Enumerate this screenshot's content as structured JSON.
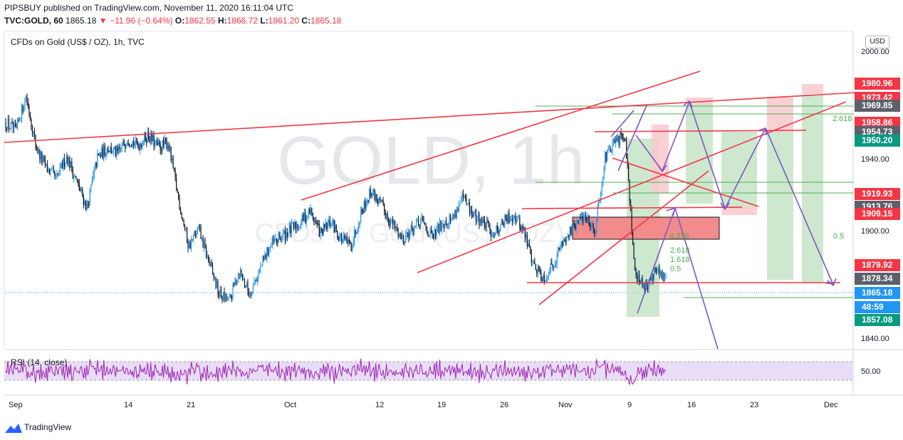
{
  "header": {
    "published": "PIPSBUY published on TradingView.com, November 11, 2020 16:11:04 UTC",
    "symbol": "TVC:GOLD, 60",
    "last": "1865.18",
    "change": "−11.96 (−0.64%)",
    "o_label": "O:",
    "o_value": "1862.55",
    "h_label": "H:",
    "h_value": "1866.72",
    "l_label": "L:",
    "l_value": "1861.20",
    "c_label": "C:",
    "c_value": "1865.18"
  },
  "legend": "CFDs on Gold (US$ / OZ), 1h, TVC",
  "watermark": {
    "big": "GOLD, 1h",
    "small": "CFDs on Gold (US$ / OZ)"
  },
  "currency": "USD",
  "colors": {
    "accent_red": "#f23645",
    "green": "#4caf50",
    "purple": "#7e57c2",
    "blue": "#2196f3"
  },
  "rsi": {
    "label": "RSI (14, close)",
    "level_label": "50.00",
    "upper": 70,
    "lower": 30
  },
  "footer": {
    "brand": "TradingView"
  },
  "chart_data": {
    "type": "candlestick",
    "price_axis": {
      "range": [
        1825,
        2025
      ],
      "ticks": [
        "2000.00",
        "1940.00",
        "1900.00",
        "1840.00"
      ]
    },
    "time_axis": {
      "ticks": [
        "Sep",
        "14",
        "21",
        "Oct",
        "12",
        "19",
        "26",
        "Nov",
        "9",
        "16",
        "23",
        "Dec"
      ]
    },
    "price_badges": [
      {
        "label": "1980.96",
        "color": "#f23645"
      },
      {
        "label": "1973.42",
        "color": "#f23645"
      },
      {
        "label": "1969.85",
        "color": "#5d606b"
      },
      {
        "label": "1958.86",
        "color": "#f23645"
      },
      {
        "label": "1954.73",
        "color": "#5d606b"
      },
      {
        "label": "1950.20",
        "color": "#089981"
      },
      {
        "label": "1919.93",
        "color": "#f23645"
      },
      {
        "label": "1913.76",
        "color": "#5d606b"
      },
      {
        "label": "1909.15",
        "color": "#f23645"
      },
      {
        "label": "1879.92",
        "color": "#f23645"
      },
      {
        "label": "1878.34",
        "color": "#5d606b"
      },
      {
        "label": "1865.18",
        "color": "#2196f3"
      },
      {
        "label": "48:59",
        "color": "#2196f3"
      },
      {
        "label": "1857.08",
        "color": "#089981"
      }
    ],
    "fib_labels": [
      "2.618",
      "0.5",
      "4.236",
      "2.618",
      "1.618",
      "0.5"
    ],
    "price_path": [
      {
        "t": 0,
        "p": 1968
      },
      {
        "t": 1,
        "p": 1962
      },
      {
        "t": 2,
        "p": 1985
      },
      {
        "t": 3,
        "p": 1952
      },
      {
        "t": 4,
        "p": 1939
      },
      {
        "t": 5,
        "p": 1932
      },
      {
        "t": 6,
        "p": 1947
      },
      {
        "t": 7,
        "p": 1930
      },
      {
        "t": 8,
        "p": 1914
      },
      {
        "t": 9,
        "p": 1945
      },
      {
        "t": 10,
        "p": 1952
      },
      {
        "t": 11,
        "p": 1948
      },
      {
        "t": 12,
        "p": 1958
      },
      {
        "t": 13,
        "p": 1953
      },
      {
        "t": 14,
        "p": 1960
      },
      {
        "t": 15,
        "p": 1952
      },
      {
        "t": 16,
        "p": 1955
      },
      {
        "t": 17,
        "p": 1920
      },
      {
        "t": 18,
        "p": 1890
      },
      {
        "t": 19,
        "p": 1900
      },
      {
        "t": 20,
        "p": 1880
      },
      {
        "t": 21,
        "p": 1860
      },
      {
        "t": 22,
        "p": 1855
      },
      {
        "t": 23,
        "p": 1875
      },
      {
        "t": 24,
        "p": 1860
      },
      {
        "t": 25,
        "p": 1875
      },
      {
        "t": 26,
        "p": 1890
      },
      {
        "t": 27,
        "p": 1895
      },
      {
        "t": 28,
        "p": 1900
      },
      {
        "t": 29,
        "p": 1905
      },
      {
        "t": 30,
        "p": 1912
      },
      {
        "t": 31,
        "p": 1898
      },
      {
        "t": 32,
        "p": 1905
      },
      {
        "t": 33,
        "p": 1895
      },
      {
        "t": 34,
        "p": 1890
      },
      {
        "t": 35,
        "p": 1912
      },
      {
        "t": 36,
        "p": 1925
      },
      {
        "t": 37,
        "p": 1915
      },
      {
        "t": 38,
        "p": 1905
      },
      {
        "t": 39,
        "p": 1895
      },
      {
        "t": 40,
        "p": 1900
      },
      {
        "t": 41,
        "p": 1905
      },
      {
        "t": 42,
        "p": 1895
      },
      {
        "t": 43,
        "p": 1905
      },
      {
        "t": 44,
        "p": 1908
      },
      {
        "t": 45,
        "p": 1920
      },
      {
        "t": 46,
        "p": 1910
      },
      {
        "t": 47,
        "p": 1905
      },
      {
        "t": 48,
        "p": 1898
      },
      {
        "t": 49,
        "p": 1905
      },
      {
        "t": 50,
        "p": 1910
      },
      {
        "t": 51,
        "p": 1900
      },
      {
        "t": 52,
        "p": 1878
      },
      {
        "t": 53,
        "p": 1870
      },
      {
        "t": 54,
        "p": 1880
      },
      {
        "t": 55,
        "p": 1895
      },
      {
        "t": 56,
        "p": 1902
      },
      {
        "t": 57,
        "p": 1910
      },
      {
        "t": 58,
        "p": 1900
      },
      {
        "t": 59,
        "p": 1945
      },
      {
        "t": 60,
        "p": 1955
      },
      {
        "t": 61,
        "p": 1960
      },
      {
        "t": 62,
        "p": 1870
      },
      {
        "t": 63,
        "p": 1865
      },
      {
        "t": 64,
        "p": 1875
      },
      {
        "t": 65,
        "p": 1868
      }
    ]
  }
}
